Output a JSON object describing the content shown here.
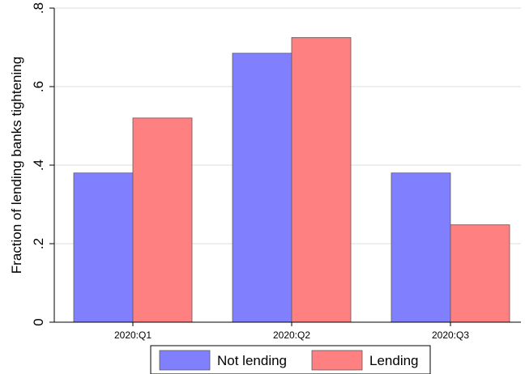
{
  "chart_data": {
    "type": "bar",
    "title": "",
    "xlabel": "",
    "ylabel": "Fraction of lending banks tightening",
    "categories": [
      "2020:Q1",
      "2020:Q2",
      "2020:Q3"
    ],
    "series": [
      {
        "name": "Not lending",
        "values": [
          0.38,
          0.685,
          0.38
        ],
        "color": "#8080ff"
      },
      {
        "name": "Lending",
        "values": [
          0.52,
          0.725,
          0.248
        ],
        "color": "#ff8080"
      }
    ],
    "ylim": [
      0,
      0.8
    ],
    "yticks": [
      0,
      0.2,
      0.4,
      0.6,
      0.8
    ],
    "ytick_labels": [
      "0",
      ".2",
      ".4",
      ".6",
      ".8"
    ],
    "grid": true,
    "legend_position": "bottom"
  }
}
